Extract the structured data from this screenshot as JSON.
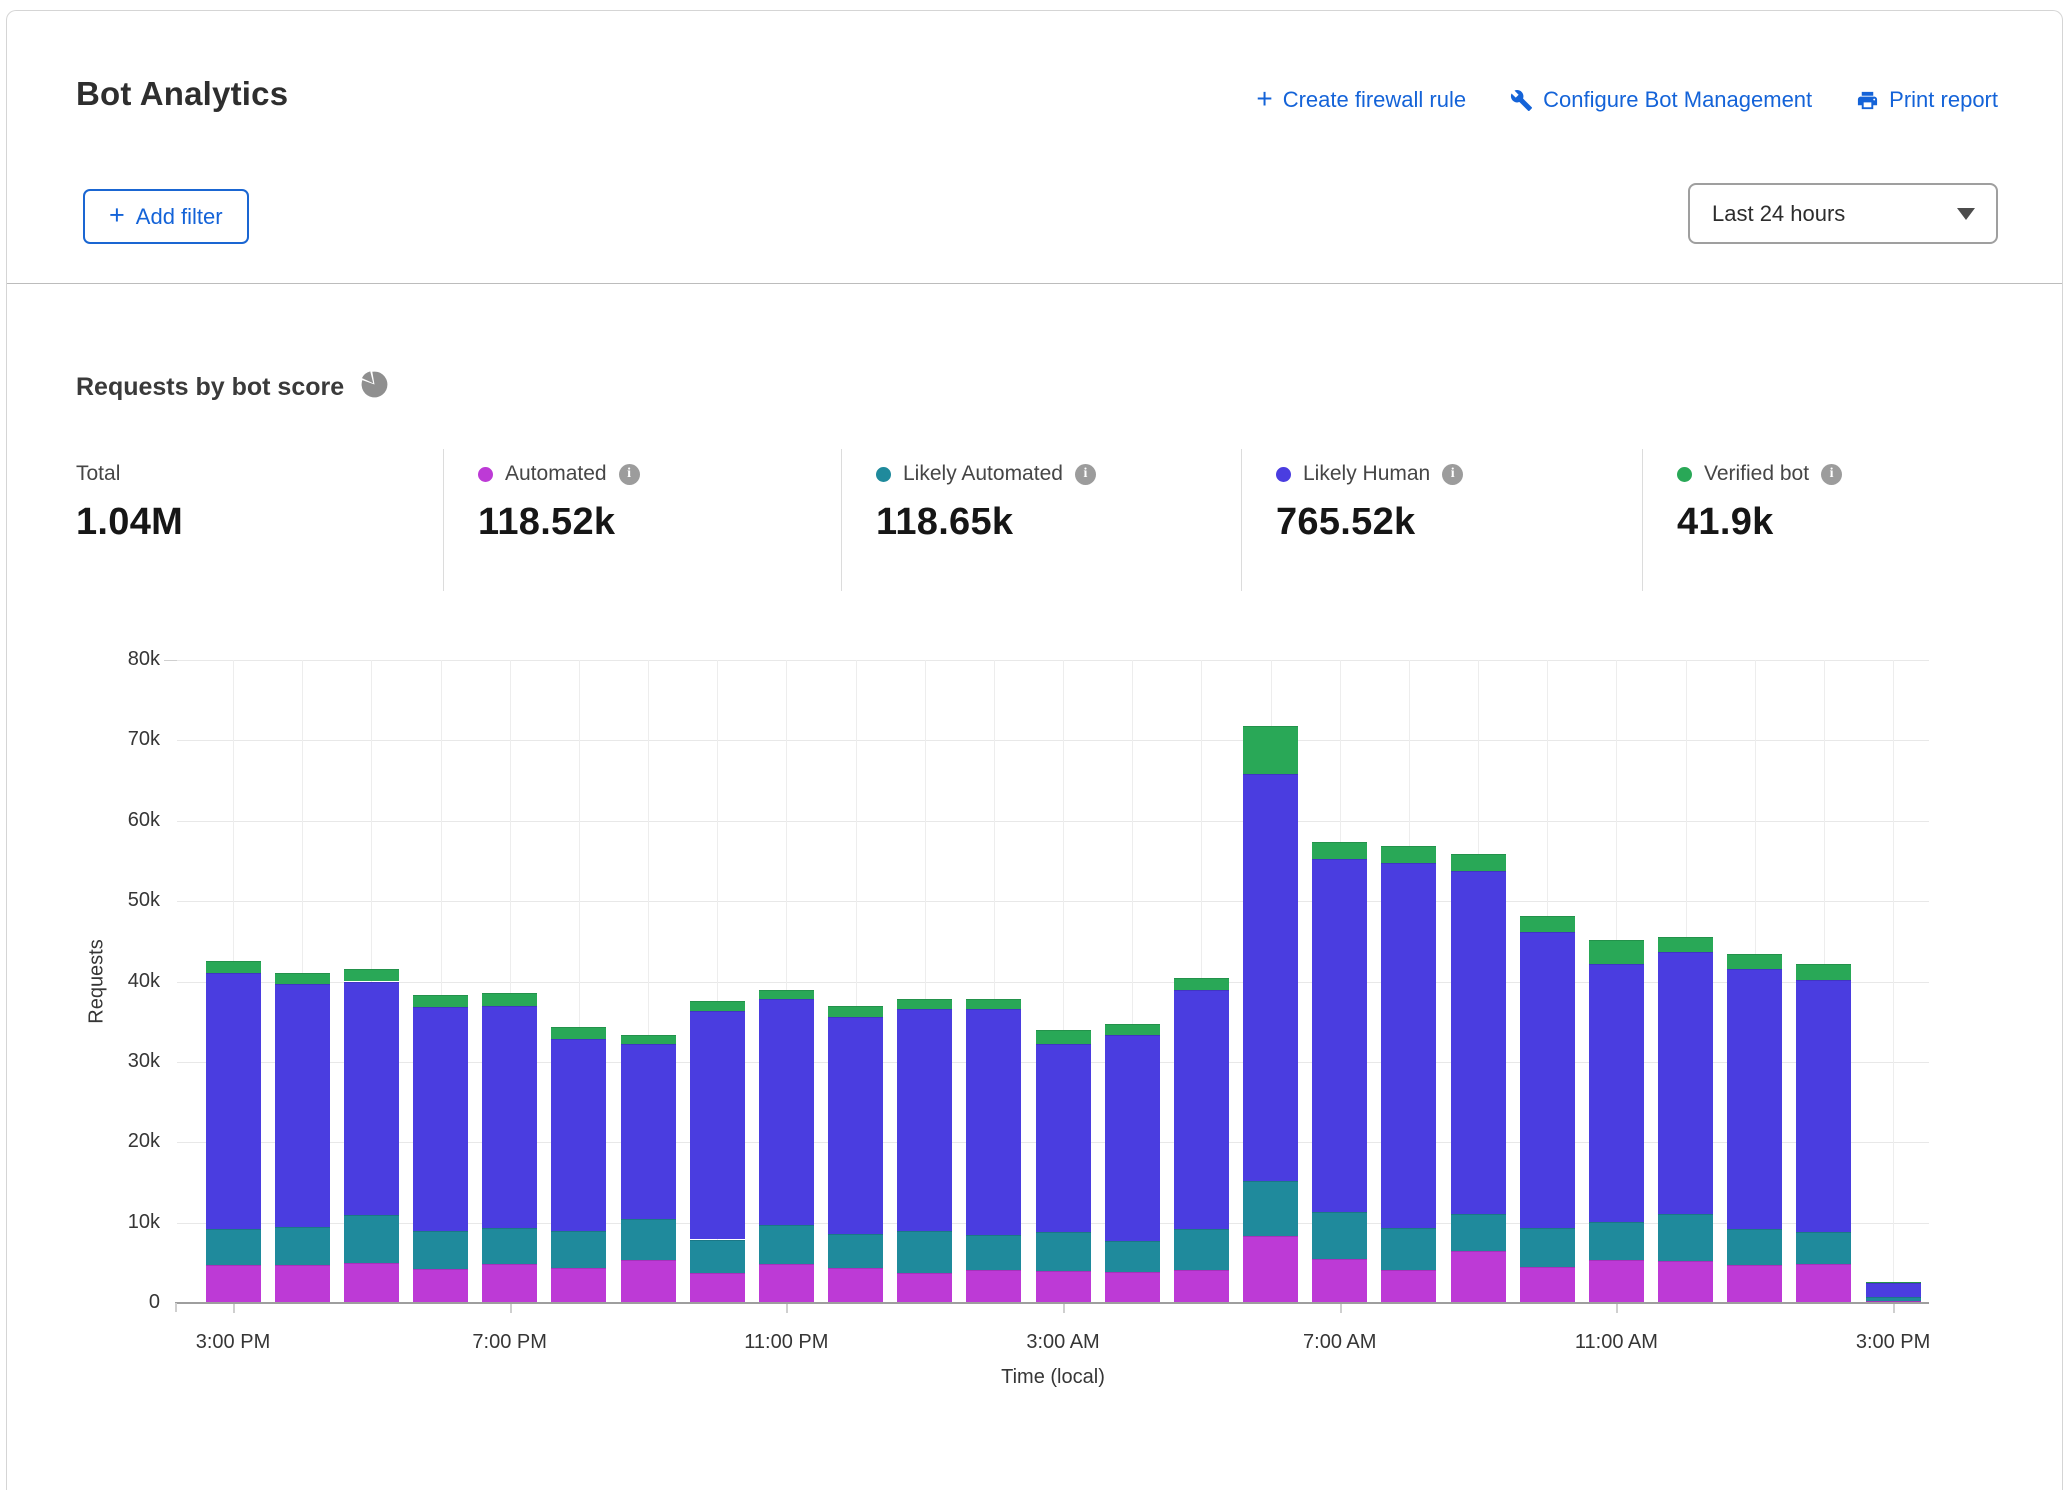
{
  "header": {
    "title": "Bot Analytics",
    "actions": [
      {
        "label": "Create firewall rule",
        "icon": "plus-icon"
      },
      {
        "label": "Configure Bot Management",
        "icon": "wrench-icon"
      },
      {
        "label": "Print report",
        "icon": "printer-icon"
      }
    ],
    "add_filter_label": "Add filter",
    "time_range_value": "Last 24 hours"
  },
  "chart_section": {
    "title": "Requests by bot score",
    "title_icon": "pie-chart-icon",
    "stats": [
      {
        "label": "Total",
        "value": "1.04M",
        "dot_color": null,
        "info": false
      },
      {
        "label": "Automated",
        "value": "118.52k",
        "dot_color": "#bd3ad6",
        "info": true
      },
      {
        "label": "Likely Automated",
        "value": "118.65k",
        "dot_color": "#1f8a9c",
        "info": true
      },
      {
        "label": "Likely Human",
        "value": "765.52k",
        "dot_color": "#4a3de0",
        "info": true
      },
      {
        "label": "Verified bot",
        "value": "41.9k",
        "dot_color": "#29a857",
        "info": true
      }
    ]
  },
  "chart_data": {
    "type": "bar",
    "stacked": true,
    "title": "Requests by bot score",
    "xlabel": "Time (local)",
    "ylabel": "Requests",
    "ylim": [
      0,
      80000
    ],
    "grid": true,
    "values_unit": "thousands of requests per hourly bar",
    "ytick_values_k": [
      0,
      10,
      20,
      30,
      40,
      50,
      60,
      70,
      80
    ],
    "ytick_labels": [
      "0",
      "10k",
      "20k",
      "30k",
      "40k",
      "50k",
      "60k",
      "70k",
      "80k"
    ],
    "x_tick_labels": [
      "3:00 PM",
      "7:00 PM",
      "11:00 PM",
      "3:00 AM",
      "7:00 AM",
      "11:00 AM",
      "3:00 PM"
    ],
    "x_tick_bar_indexes": [
      0,
      4,
      8,
      12,
      16,
      20,
      24
    ],
    "bar_count": 25,
    "series": [
      {
        "name": "Automated",
        "color": "#bd3ad6",
        "values": [
          4.7,
          4.7,
          5.0,
          4.2,
          4.8,
          4.3,
          5.3,
          3.7,
          4.8,
          4.3,
          3.7,
          4.1,
          4.0,
          3.9,
          4.1,
          8.3,
          5.5,
          4.1,
          6.5,
          4.5,
          5.3,
          5.2,
          4.7,
          4.8,
          0.3
        ]
      },
      {
        "name": "Likely Automated",
        "color": "#1f8a9c",
        "values": [
          4.5,
          4.7,
          5.9,
          4.7,
          4.5,
          4.6,
          5.1,
          4.2,
          4.9,
          4.3,
          5.2,
          4.3,
          4.8,
          3.8,
          5.1,
          6.9,
          5.8,
          5.2,
          4.6,
          4.8,
          4.8,
          5.9,
          4.5,
          4.0,
          0.4
        ]
      },
      {
        "name": "Likely Human",
        "color": "#4a3de0",
        "values": [
          31.9,
          30.3,
          29.1,
          27.9,
          27.7,
          24.0,
          21.8,
          28.4,
          28.1,
          27.0,
          27.7,
          28.2,
          23.4,
          25.7,
          29.8,
          50.6,
          43.9,
          45.4,
          42.7,
          36.8,
          32.1,
          32.6,
          32.3,
          31.4,
          1.8
        ]
      },
      {
        "name": "Verified bot",
        "color": "#29a857",
        "values": [
          1.5,
          1.4,
          1.6,
          1.5,
          1.6,
          1.4,
          1.2,
          1.3,
          1.2,
          1.4,
          1.2,
          1.2,
          1.8,
          1.3,
          1.4,
          6.0,
          2.1,
          2.1,
          2.1,
          2.1,
          3.0,
          1.8,
          1.9,
          2.0,
          0.1
        ]
      }
    ]
  }
}
